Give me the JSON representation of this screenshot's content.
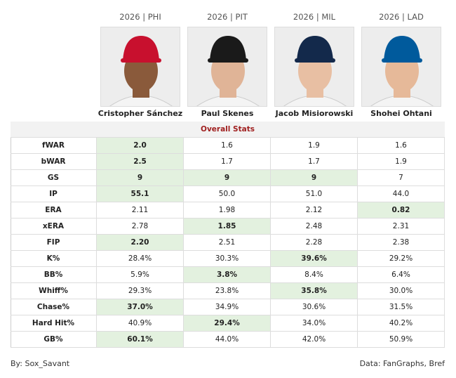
{
  "players": [
    {
      "header": "2026 | PHI",
      "name": "Cristopher Sánchez"
    },
    {
      "header": "2026 | PIT",
      "name": "Paul Skenes"
    },
    {
      "header": "2026 | MIL",
      "name": "Jacob Misiorowski"
    },
    {
      "header": "2026 | LAD",
      "name": "Shohei Ohtani"
    }
  ],
  "table": {
    "title": "Overall Stats",
    "highlight_color": "#e3f1df",
    "rows": [
      {
        "label": "fWAR",
        "values": [
          "2.0",
          "1.6",
          "1.9",
          "1.6"
        ],
        "best": [
          0
        ]
      },
      {
        "label": "bWAR",
        "values": [
          "2.5",
          "1.7",
          "1.7",
          "1.9"
        ],
        "best": [
          0
        ]
      },
      {
        "label": "GS",
        "values": [
          "9",
          "9",
          "9",
          "7"
        ],
        "best": [
          0,
          1,
          2
        ]
      },
      {
        "label": "IP",
        "values": [
          "55.1",
          "50.0",
          "51.0",
          "44.0"
        ],
        "best": [
          0
        ]
      },
      {
        "label": "ERA",
        "values": [
          "2.11",
          "1.98",
          "2.12",
          "0.82"
        ],
        "best": [
          3
        ]
      },
      {
        "label": "xERA",
        "values": [
          "2.78",
          "1.85",
          "2.48",
          "2.31"
        ],
        "best": [
          1
        ]
      },
      {
        "label": "FIP",
        "values": [
          "2.20",
          "2.51",
          "2.28",
          "2.38"
        ],
        "best": [
          0
        ]
      },
      {
        "label": "K%",
        "values": [
          "28.4%",
          "30.3%",
          "39.6%",
          "29.2%"
        ],
        "best": [
          2
        ]
      },
      {
        "label": "BB%",
        "values": [
          "5.9%",
          "3.8%",
          "8.4%",
          "6.4%"
        ],
        "best": [
          1
        ]
      },
      {
        "label": "Whiff%",
        "values": [
          "29.3%",
          "23.8%",
          "35.8%",
          "30.0%"
        ],
        "best": [
          2
        ]
      },
      {
        "label": "Chase%",
        "values": [
          "37.0%",
          "34.9%",
          "30.6%",
          "31.5%"
        ],
        "best": [
          0
        ]
      },
      {
        "label": "Hard Hit%",
        "values": [
          "40.9%",
          "29.4%",
          "34.0%",
          "40.2%"
        ],
        "best": [
          1
        ]
      },
      {
        "label": "GB%",
        "values": [
          "60.1%",
          "44.0%",
          "42.0%",
          "50.9%"
        ],
        "best": [
          0
        ]
      }
    ]
  },
  "footer": {
    "left": "By: Sox_Savant",
    "right": "Data: FanGraphs, Bref"
  }
}
